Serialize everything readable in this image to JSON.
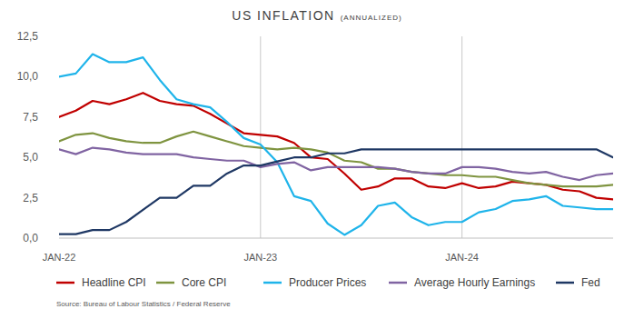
{
  "chart_data": {
    "type": "line",
    "title": "US INFLATION",
    "subtitle": "(ANNUALIZED)",
    "annotations": [
      "Source: Bureau of Labour Statistics / Federal Reserve"
    ],
    "categories": [
      "JAN-22",
      null,
      null,
      null,
      null,
      null,
      null,
      null,
      null,
      null,
      null,
      null,
      "JAN-23",
      null,
      null,
      null,
      null,
      null,
      null,
      null,
      null,
      null,
      null,
      null,
      "JAN-24",
      null,
      null,
      null,
      null,
      null,
      null,
      null,
      null,
      null
    ],
    "series": [
      {
        "name": "Headline CPI",
        "color": "#c00000",
        "values": [
          7.5,
          7.9,
          8.5,
          8.3,
          8.6,
          9.0,
          8.5,
          8.3,
          8.2,
          7.7,
          7.1,
          6.5,
          6.4,
          6.3,
          5.9,
          5.0,
          4.9,
          4.0,
          3.0,
          3.2,
          3.7,
          3.7,
          3.2,
          3.1,
          3.4,
          3.1,
          3.2,
          3.5,
          3.4,
          3.3,
          3.0,
          2.9,
          2.5,
          2.4
        ]
      },
      {
        "name": "Core CPI",
        "color": "#7f9440",
        "values": [
          6.0,
          6.4,
          6.5,
          6.2,
          6.0,
          5.9,
          5.9,
          6.3,
          6.6,
          6.3,
          6.0,
          5.7,
          5.6,
          5.5,
          5.6,
          5.5,
          5.3,
          4.8,
          4.7,
          4.3,
          4.3,
          4.1,
          4.0,
          3.9,
          3.9,
          3.8,
          3.8,
          3.6,
          3.4,
          3.3,
          3.2,
          3.2,
          3.2,
          3.3
        ]
      },
      {
        "name": "Producer Prices",
        "color": "#1fb4ea",
        "values": [
          10.0,
          10.2,
          11.4,
          10.9,
          10.9,
          11.2,
          9.8,
          8.6,
          8.3,
          8.1,
          7.2,
          6.2,
          5.8,
          4.7,
          2.6,
          2.3,
          0.9,
          0.2,
          0.8,
          2.0,
          2.2,
          1.3,
          0.8,
          1.0,
          1.0,
          1.6,
          1.8,
          2.3,
          2.4,
          2.6,
          2.0,
          1.9,
          1.8,
          1.8
        ]
      },
      {
        "name": "Average Hourly Earnings",
        "color": "#8064a2",
        "values": [
          5.5,
          5.2,
          5.6,
          5.5,
          5.3,
          5.2,
          5.2,
          5.2,
          5.0,
          4.9,
          4.8,
          4.8,
          4.4,
          4.6,
          4.7,
          4.2,
          4.4,
          4.4,
          4.4,
          4.4,
          4.3,
          4.1,
          4.0,
          4.0,
          4.4,
          4.4,
          4.3,
          4.1,
          4.0,
          4.1,
          3.8,
          3.6,
          3.9,
          4.0
        ]
      },
      {
        "name": "Fed",
        "color": "#1f3864",
        "values": [
          0.25,
          0.25,
          0.5,
          0.5,
          1.0,
          1.75,
          2.5,
          2.5,
          3.25,
          3.25,
          4.0,
          4.5,
          4.5,
          4.75,
          5.0,
          5.0,
          5.25,
          5.25,
          5.5,
          5.5,
          5.5,
          5.5,
          5.5,
          5.5,
          5.5,
          5.5,
          5.5,
          5.5,
          5.5,
          5.5,
          5.5,
          5.5,
          5.5,
          5.0
        ]
      }
    ],
    "ylim": [
      0,
      12.5
    ],
    "yticks": [
      {
        "value": 0,
        "label": "0,0"
      },
      {
        "value": 2.5,
        "label": "2,5"
      },
      {
        "value": 5,
        "label": "5,0"
      },
      {
        "value": 7.5,
        "label": "7,5"
      },
      {
        "value": 10,
        "label": "10,0"
      },
      {
        "value": 12.5,
        "label": "12,5"
      }
    ],
    "grid": true,
    "legend": "bottom"
  }
}
